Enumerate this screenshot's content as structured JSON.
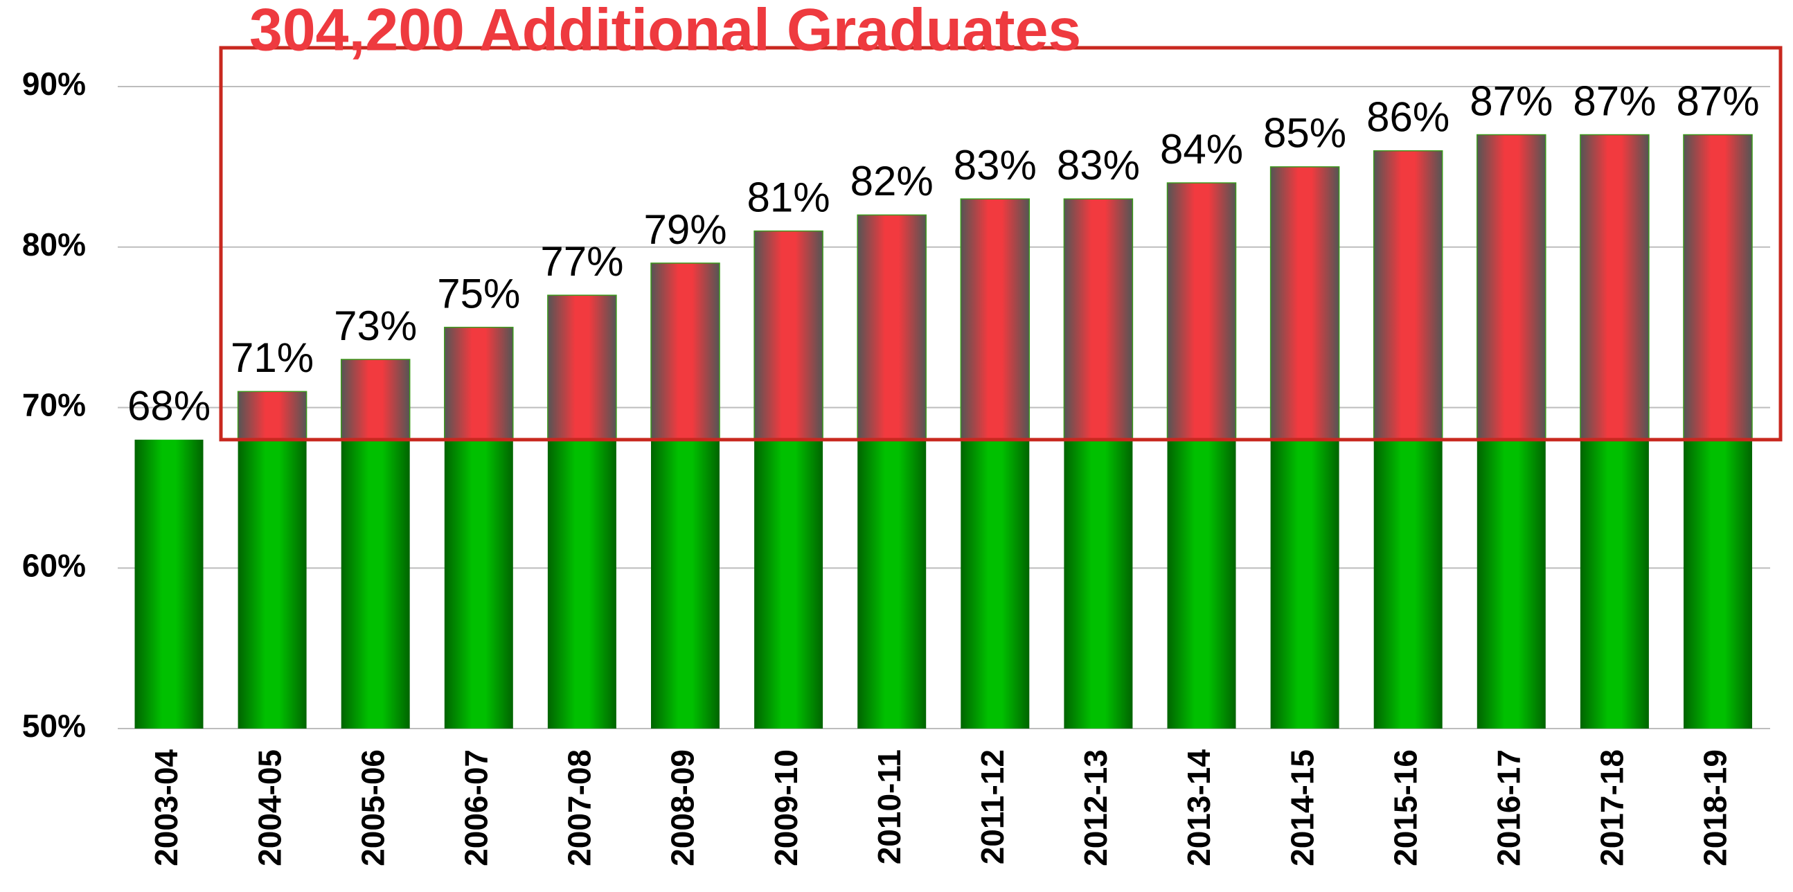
{
  "chart_data": {
    "type": "bar",
    "title": "304,200 Additional Graduates",
    "categories": [
      "2003-04",
      "2004-05",
      "2005-06",
      "2006-07",
      "2007-08",
      "2008-09",
      "2009-10",
      "2010-11",
      "2011-12",
      "2012-13",
      "2013-14",
      "2014-15",
      "2015-16",
      "2016-17",
      "2017-18",
      "2018-19"
    ],
    "values": [
      68,
      71,
      73,
      75,
      77,
      79,
      81,
      82,
      83,
      83,
      84,
      85,
      86,
      87,
      87,
      87
    ],
    "value_labels": [
      "68%",
      "71%",
      "73%",
      "75%",
      "77%",
      "79%",
      "81%",
      "82%",
      "83%",
      "83%",
      "84%",
      "85%",
      "86%",
      "87%",
      "87%",
      "87%"
    ],
    "colors": [
      "#00c000",
      "#f23a3f"
    ],
    "ylim": [
      50,
      90
    ],
    "yticks": [
      {
        "value": 50,
        "label": "50%"
      },
      {
        "value": 60,
        "label": "60%"
      },
      {
        "value": 70,
        "label": "70%"
      },
      {
        "value": 80,
        "label": "80%"
      },
      {
        "value": 90,
        "label": "90%"
      }
    ],
    "grid": true
  }
}
